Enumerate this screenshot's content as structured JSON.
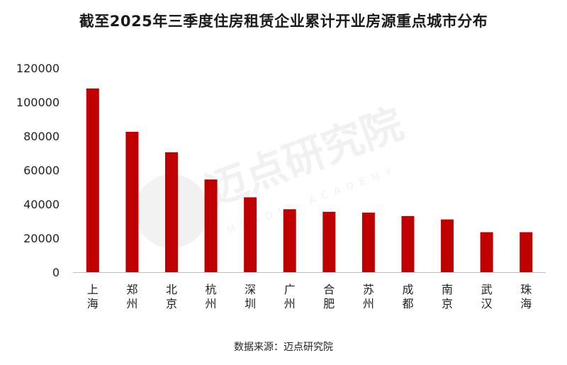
{
  "chart_data": {
    "type": "bar",
    "title": "截至2025年三季度住房租赁企业累计开业房源重点城市分布",
    "categories": [
      "上海",
      "郑州",
      "北京",
      "杭州",
      "深圳",
      "广州",
      "合肥",
      "苏州",
      "成都",
      "南京",
      "武汉",
      "珠海"
    ],
    "values": [
      108000,
      82500,
      70500,
      54500,
      44000,
      37000,
      35500,
      35000,
      33000,
      31000,
      23500,
      23500
    ],
    "ylim": [
      0,
      120000
    ],
    "yticks": [
      0,
      20000,
      40000,
      60000,
      80000,
      100000,
      120000
    ],
    "xlabel": "",
    "ylabel": "",
    "grid": false,
    "bar_color": "#c00000"
  },
  "source": "数据来源：迈点研究院",
  "watermark": {
    "name": "迈点研究院",
    "subtitle": "MEADIN ACADEMY"
  }
}
